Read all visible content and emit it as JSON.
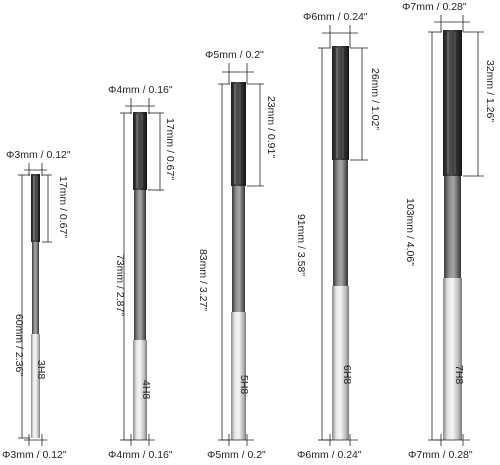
{
  "reamers": [
    {
      "id": "3mm",
      "top_diameter": "Φ3mm / 0.12\"",
      "bottom_diameter": "Φ3mm / 0.12\"",
      "flute_length": "17mm / 0.67\"",
      "overall_length": "60mm / 2.36\"",
      "marking": "3H8"
    },
    {
      "id": "4mm",
      "top_diameter": "Φ4mm / 0.16\"",
      "bottom_diameter": "Φ4mm / 0.16\"",
      "flute_length": "17mm / 0.67\"",
      "overall_length": "73mm / 2.87\"",
      "marking": "4H8"
    },
    {
      "id": "5mm",
      "top_diameter": "Φ5mm / 0.2\"",
      "bottom_diameter": "Φ5mm / 0.2\"",
      "flute_length": "23mm / 0.91\"",
      "overall_length": "83mm / 3.27\"",
      "marking": "5H8"
    },
    {
      "id": "6mm",
      "top_diameter": "Φ6mm / 0.24\"",
      "bottom_diameter": "Φ6mm / 0.24\"",
      "flute_length": "26mm / 1.02\"",
      "overall_length": "91mm / 3.58\"",
      "marking": "6H8"
    },
    {
      "id": "7mm",
      "top_diameter": "Φ7mm / 0.28\"",
      "bottom_diameter": "Φ7mm / 0.28\"",
      "flute_length": "32mm / 1.26\"",
      "overall_length": "103mm / 4.06\"",
      "marking": "7H8"
    }
  ],
  "colors": {
    "flute_dark": "#2b2b2b",
    "shank_mid": "#6e6e6e",
    "shank_light": "#cfcfcf",
    "line": "#222222"
  }
}
